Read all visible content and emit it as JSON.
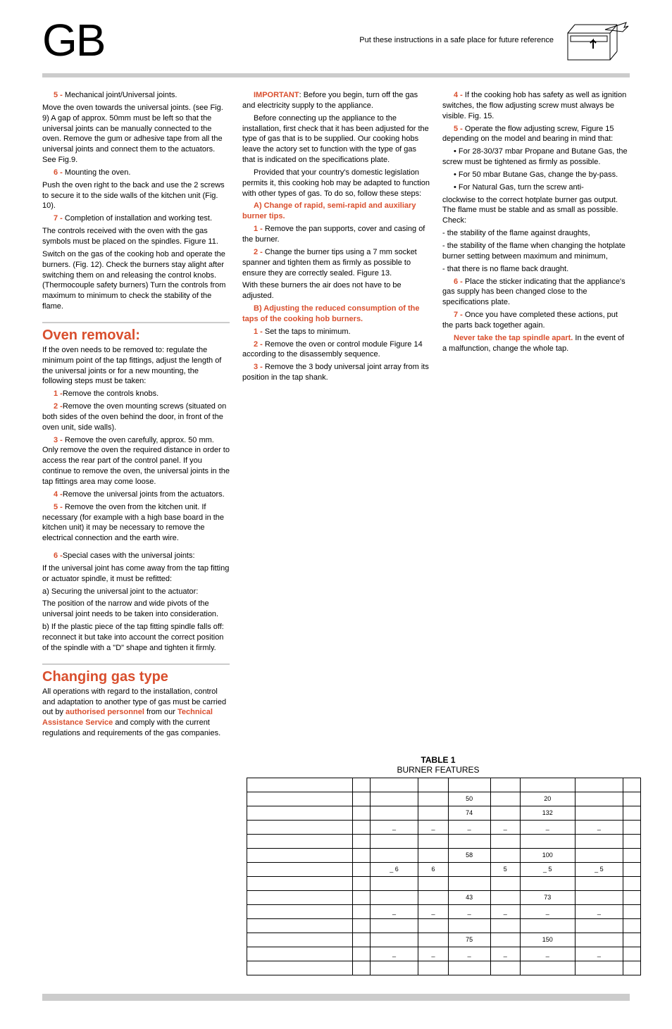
{
  "header": {
    "gb": "GB",
    "safe_place": "Put these instructions in a safe place for future reference"
  },
  "col1": {
    "p5a": "5 -",
    "p5b": " Mechanical joint/Universal joints.",
    "p5c": "Move the oven towards the universal joints. (see Fig. 9) A gap of approx. 50mm must be left so that the universal joints can be manually connected to the oven. Remove the gum or adhesive tape from all the universal joints and connect them to the actuators. See Fig.9.",
    "p6a": "6 -",
    "p6b": " Mounting the oven.",
    "p6c": "Push the oven right to the back and use the 2 screws to secure it to the side walls of the kitchen unit (Fig. 10).",
    "p7a": "7 -",
    "p7b": " Completion of installation and working test.",
    "p7c": "The controls received with the oven with the gas symbols must be placed on the spindles. Figure 11.",
    "p7d": "Switch on the gas of the cooking hob and operate the burners. (Fig. 12). Check the burners stay alight after switching them on and releasing the control knobs. (Thermocouple safety burners) Turn the controls from maximum to minimum to check the stability of the flame.",
    "oven_removal": "Oven removal:",
    "or1": "If the oven needs to be removed to: regulate the minimum point of the tap fittings, adjust the length of the universal joints or for a new mounting, the following steps must be taken:",
    "or_s1a": "1 -",
    "or_s1b": "Remove the controls knobs.",
    "or_s2a": "2 -",
    "or_s2b": "Remove the oven mounting screws (situated on both sides of the oven behind the door, in front of the oven unit, side walls).",
    "or_s3a": "3 -",
    "or_s3b": " Remove the oven carefully, approx. 50 mm. Only remove the oven the required distance in order to access the rear part of the control panel. If you continue to remove the oven, the universal joints in the tap fittings area may come loose.",
    "or_s4a": "4 -",
    "or_s4b": "Remove the universal joints from the actuators.",
    "or_s5a": "5 -",
    "or_s5b": " Remove the oven from the kitchen unit. If necessary (for example with a high base board in the kitchen unit) it may be necessary to remove the electrical connection and the earth wire.",
    "or_s6a": "6 -",
    "or_s6b": "Special cases with the universal joints:",
    "or_s6c": "If the universal joint has come away from the tap fitting or actuator spindle, it must be refitted:",
    "or_s6d": "a) Securing the universal joint to the actuator:",
    "or_s6e": "The position of the narrow and wide pivots of the universal joint needs to be taken into consideration.",
    "or_s6f": "b) If the plastic piece of the tap fitting spindle falls off: reconnect it but take into account the correct position of the spindle with a \"D\" shape and tighten it firmly.",
    "changing_gas": "Changing gas type",
    "cg1a": "All operations with regard to the installation, control and adaptation to another type of gas must be carried out by ",
    "cg1b": "authorised personnel",
    "cg1c": " from our ",
    "cg1d": "Technical Assistance Service",
    "cg1e": " and comply with the current regulations and requirements of the gas companies."
  },
  "col2": {
    "imp_a": "IMPORTANT",
    "imp_b": ": Before you begin, turn off the gas and electricity supply to the appliance.",
    "p2": "Before connecting up the appliance to the installation, first check that it has been adjusted for the type of gas that is to be supplied. Our cooking hobs leave the actory set to function with the type of gas that is indicated on the specifications plate.",
    "p3": "Provided that your country's domestic legislation permits it, this cooking hob may be adapted to function with other types of gas. To do so, follow these steps:",
    "a_heading": "A) Change of rapid, semi-rapid and auxiliary burner tips.",
    "a1a": "1 -",
    "a1b": " Remove the pan supports, cover and casing of the burner.",
    "a2a": "2 -",
    "a2b": " Change the burner tips using a 7 mm socket spanner and tighten them as firmly as possible to ensure they are correctly sealed. Figure 13.",
    "a2c": "With these burners the air does not have to be adjusted.",
    "b_heading": "B) Adjusting the reduced consumption of the taps of the cooking hob burners.",
    "b1a": "1 -",
    "b1b": " Set the taps to minimum.",
    "b2a": "2 -",
    "b2b": " Remove the oven or control module Figure 14 according to the disassembly sequence.",
    "b3a": "3 -",
    "b3b": " Remove the 3 body universal joint array from its position in the tap shank."
  },
  "col3": {
    "p4a": "4 -",
    "p4b": " If the cooking hob has safety as well as ignition switches, the flow adjusting screw must always be visible. Fig. 15.",
    "p5a": "5 -",
    "p5b": " Operate the flow adjusting screw, Figure 15 depending on the model and bearing in mind that:",
    "bul1": "• For 28-30/37 mbar Propane and Butane Gas, the screw must be tightened as firmly as possible.",
    "bul2": "• For 50 mbar Butane Gas, change the by-pass.",
    "bul3a": "• For Natural Gas, turn the screw ",
    "bul3b": "anti-",
    "bul3c": "clockwise to the correct hotplate burner gas output. The flame must be stable and as small as possible. Check:",
    "dash1": "- the stability of the flame against draughts,",
    "dash2": "- the stability of the flame when changing the hotplate burner setting between maximum and minimum,",
    "dash3": "- that there is no flame back draught.",
    "p6a": "6 -",
    "p6b": " Place the sticker indicating that the appliance's gas supply has been changed close to the specifications plate.",
    "p7a": "7 -",
    "p7b": " Once you have completed these actions, put the parts back together again.",
    "neverA": "Never take the tap spindle apart.",
    "neverB": " In the event of a malfunction, change the whole tap."
  },
  "table": {
    "title_a": "TABLE 1",
    "title_b": "BURNER FEATURES",
    "rows": [
      [
        "",
        "",
        "",
        "",
        "",
        "",
        "",
        "",
        ""
      ],
      [
        "",
        "",
        "",
        "",
        "50",
        "",
        "20",
        "",
        ""
      ],
      [
        "",
        "",
        "",
        "",
        "74",
        "",
        "132",
        "",
        ""
      ],
      [
        "",
        "",
        "_",
        "_",
        "_",
        "_",
        "_",
        "_",
        ""
      ],
      [
        "",
        "",
        "",
        "",
        "",
        "",
        "",
        "",
        ""
      ],
      [
        "",
        "",
        "",
        "",
        "58",
        "",
        "100",
        "",
        ""
      ],
      [
        "",
        "",
        "_  6",
        "6",
        "",
        "5",
        "_  5",
        "_  5",
        ""
      ],
      [
        "",
        "",
        "",
        "",
        "",
        "",
        "",
        "",
        ""
      ],
      [
        "",
        "",
        "",
        "",
        "43",
        "",
        "73",
        "",
        ""
      ],
      [
        "",
        "",
        "_",
        "_",
        "_",
        "_",
        "_",
        "_",
        ""
      ],
      [
        "",
        "",
        "",
        "",
        "",
        "",
        "",
        "",
        ""
      ],
      [
        "",
        "",
        "",
        "",
        "75",
        "",
        "150",
        "",
        ""
      ],
      [
        "",
        "",
        "_",
        "_",
        "_",
        "_",
        "_",
        "_",
        ""
      ],
      [
        "",
        "",
        "",
        "",
        "",
        "",
        "",
        "",
        ""
      ]
    ]
  }
}
